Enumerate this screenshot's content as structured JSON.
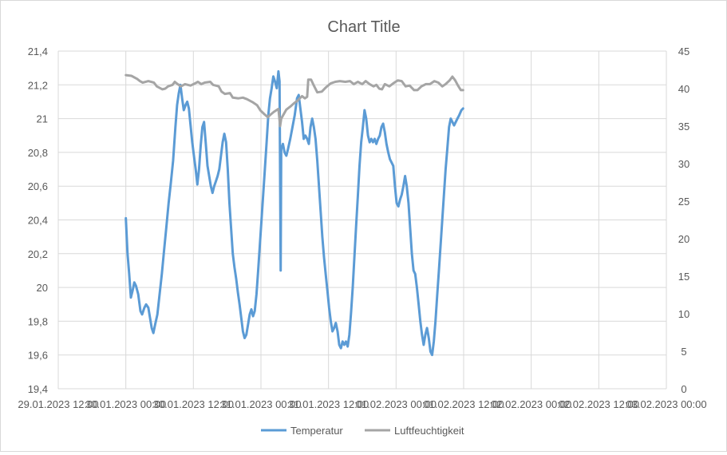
{
  "chart_data": {
    "type": "line",
    "title": "Chart Title",
    "grid": true,
    "legend_position": "bottom",
    "x_axis": {
      "tick_labels": [
        "29.01.2023 12:00",
        "30.01.2023 00:00",
        "30.01.2023 12:00",
        "31.01.2023 00:00",
        "31.01.2023 12:00",
        "01.02.2023 00:00",
        "01.02.2023 12:00",
        "02.02.2023 00:00",
        "02.02.2023 12:00",
        "03.02.2023 00:00"
      ],
      "range_hours": [
        0,
        108
      ]
    },
    "y_axis_left": {
      "ticks": [
        "19,4",
        "19,6",
        "19,8",
        "20",
        "20,2",
        "20,4",
        "20,6",
        "20,8",
        "21",
        "21,2",
        "21,4"
      ],
      "min": 19.4,
      "max": 21.4
    },
    "y_axis_right": {
      "ticks": [
        "0",
        "5",
        "10",
        "15",
        "20",
        "25",
        "30",
        "35",
        "40",
        "45"
      ],
      "min": 0,
      "max": 45
    },
    "series": [
      {
        "name": "Temperatur",
        "axis": "left",
        "color": "#5b9bd5",
        "points": [
          [
            12,
            20.41
          ],
          [
            12.3,
            20.2
          ],
          [
            12.6,
            20.08
          ],
          [
            12.9,
            19.94
          ],
          [
            13.2,
            19.98
          ],
          [
            13.5,
            20.03
          ],
          [
            13.8,
            20.01
          ],
          [
            14.2,
            19.96
          ],
          [
            14.6,
            19.86
          ],
          [
            14.9,
            19.84
          ],
          [
            15.3,
            19.88
          ],
          [
            15.6,
            19.9
          ],
          [
            16,
            19.88
          ],
          [
            16.3,
            19.82
          ],
          [
            16.6,
            19.76
          ],
          [
            16.9,
            19.73
          ],
          [
            17.2,
            19.78
          ],
          [
            17.6,
            19.84
          ],
          [
            18,
            19.96
          ],
          [
            18.4,
            20.08
          ],
          [
            18.8,
            20.22
          ],
          [
            19.2,
            20.36
          ],
          [
            19.6,
            20.5
          ],
          [
            20,
            20.62
          ],
          [
            20.4,
            20.75
          ],
          [
            20.8,
            20.95
          ],
          [
            21.1,
            21.08
          ],
          [
            21.4,
            21.15
          ],
          [
            21.7,
            21.2
          ],
          [
            22,
            21.12
          ],
          [
            22.3,
            21.05
          ],
          [
            22.6,
            21.08
          ],
          [
            22.9,
            21.1
          ],
          [
            23.2,
            21.06
          ],
          [
            23.5,
            20.96
          ],
          [
            23.8,
            20.86
          ],
          [
            24.1,
            20.78
          ],
          [
            24.4,
            20.7
          ],
          [
            24.7,
            20.61
          ],
          [
            25,
            20.7
          ],
          [
            25.3,
            20.84
          ],
          [
            25.6,
            20.95
          ],
          [
            25.9,
            20.98
          ],
          [
            26.2,
            20.85
          ],
          [
            26.5,
            20.72
          ],
          [
            26.8,
            20.66
          ],
          [
            27.1,
            20.6
          ],
          [
            27.4,
            20.56
          ],
          [
            27.7,
            20.6
          ],
          [
            28,
            20.63
          ],
          [
            28.3,
            20.66
          ],
          [
            28.6,
            20.7
          ],
          [
            28.9,
            20.78
          ],
          [
            29.2,
            20.86
          ],
          [
            29.5,
            20.91
          ],
          [
            29.8,
            20.86
          ],
          [
            30.1,
            20.7
          ],
          [
            30.4,
            20.5
          ],
          [
            30.7,
            20.35
          ],
          [
            31,
            20.2
          ],
          [
            31.3,
            20.12
          ],
          [
            31.6,
            20.05
          ],
          [
            31.9,
            19.97
          ],
          [
            32.2,
            19.9
          ],
          [
            32.5,
            19.82
          ],
          [
            32.8,
            19.74
          ],
          [
            33.1,
            19.7
          ],
          [
            33.4,
            19.72
          ],
          [
            33.7,
            19.78
          ],
          [
            34,
            19.84
          ],
          [
            34.3,
            19.87
          ],
          [
            34.6,
            19.83
          ],
          [
            34.9,
            19.86
          ],
          [
            35.2,
            19.96
          ],
          [
            35.5,
            20.1
          ],
          [
            35.8,
            20.25
          ],
          [
            36.1,
            20.4
          ],
          [
            36.4,
            20.55
          ],
          [
            36.7,
            20.7
          ],
          [
            37,
            20.86
          ],
          [
            37.3,
            21.02
          ],
          [
            37.6,
            21.12
          ],
          [
            37.9,
            21.18
          ],
          [
            38.2,
            21.25
          ],
          [
            38.5,
            21.22
          ],
          [
            38.8,
            21.18
          ],
          [
            39.1,
            21.28
          ],
          [
            39.3,
            21.22
          ],
          [
            39.5,
            20.1
          ],
          [
            39.6,
            20.82
          ],
          [
            39.9,
            20.85
          ],
          [
            40.2,
            20.8
          ],
          [
            40.5,
            20.78
          ],
          [
            40.8,
            20.82
          ],
          [
            41.2,
            20.88
          ],
          [
            41.6,
            20.95
          ],
          [
            42,
            21.02
          ],
          [
            42.4,
            21.12
          ],
          [
            42.7,
            21.14
          ],
          [
            43,
            21.06
          ],
          [
            43.3,
            20.98
          ],
          [
            43.6,
            20.88
          ],
          [
            43.9,
            20.9
          ],
          [
            44.2,
            20.88
          ],
          [
            44.5,
            20.85
          ],
          [
            44.8,
            20.95
          ],
          [
            45.1,
            21.0
          ],
          [
            45.4,
            20.95
          ],
          [
            45.7,
            20.88
          ],
          [
            46,
            20.75
          ],
          [
            46.3,
            20.6
          ],
          [
            46.6,
            20.45
          ],
          [
            46.9,
            20.3
          ],
          [
            47.2,
            20.18
          ],
          [
            47.5,
            20.08
          ],
          [
            47.8,
            19.98
          ],
          [
            48.1,
            19.88
          ],
          [
            48.4,
            19.8
          ],
          [
            48.7,
            19.74
          ],
          [
            49,
            19.76
          ],
          [
            49.3,
            19.79
          ],
          [
            49.6,
            19.74
          ],
          [
            49.9,
            19.66
          ],
          [
            50.2,
            19.64
          ],
          [
            50.5,
            19.68
          ],
          [
            50.8,
            19.66
          ],
          [
            51.1,
            19.68
          ],
          [
            51.4,
            19.65
          ],
          [
            51.7,
            19.72
          ],
          [
            52,
            19.85
          ],
          [
            52.3,
            20.0
          ],
          [
            52.6,
            20.18
          ],
          [
            52.9,
            20.36
          ],
          [
            53.2,
            20.54
          ],
          [
            53.5,
            20.72
          ],
          [
            53.8,
            20.86
          ],
          [
            54.1,
            20.95
          ],
          [
            54.4,
            21.05
          ],
          [
            54.7,
            21.0
          ],
          [
            55,
            20.9
          ],
          [
            55.3,
            20.86
          ],
          [
            55.6,
            20.88
          ],
          [
            55.9,
            20.86
          ],
          [
            56.2,
            20.88
          ],
          [
            56.5,
            20.85
          ],
          [
            56.8,
            20.88
          ],
          [
            57.1,
            20.9
          ],
          [
            57.4,
            20.95
          ],
          [
            57.7,
            20.97
          ],
          [
            58,
            20.92
          ],
          [
            58.3,
            20.85
          ],
          [
            58.6,
            20.8
          ],
          [
            58.9,
            20.76
          ],
          [
            59.2,
            20.74
          ],
          [
            59.5,
            20.72
          ],
          [
            59.8,
            20.6
          ],
          [
            60.1,
            20.5
          ],
          [
            60.4,
            20.48
          ],
          [
            60.7,
            20.52
          ],
          [
            61,
            20.55
          ],
          [
            61.3,
            20.6
          ],
          [
            61.6,
            20.66
          ],
          [
            61.9,
            20.6
          ],
          [
            62.2,
            20.5
          ],
          [
            62.5,
            20.35
          ],
          [
            62.8,
            20.2
          ],
          [
            63.1,
            20.1
          ],
          [
            63.4,
            20.08
          ],
          [
            63.7,
            20.0
          ],
          [
            64,
            19.9
          ],
          [
            64.3,
            19.8
          ],
          [
            64.6,
            19.72
          ],
          [
            64.9,
            19.66
          ],
          [
            65.2,
            19.72
          ],
          [
            65.5,
            19.76
          ],
          [
            65.8,
            19.7
          ],
          [
            66.1,
            19.62
          ],
          [
            66.4,
            19.6
          ],
          [
            66.7,
            19.68
          ],
          [
            67,
            19.8
          ],
          [
            67.3,
            19.95
          ],
          [
            67.6,
            20.1
          ],
          [
            67.9,
            20.25
          ],
          [
            68.2,
            20.4
          ],
          [
            68.5,
            20.55
          ],
          [
            68.8,
            20.7
          ],
          [
            69.1,
            20.82
          ],
          [
            69.4,
            20.95
          ],
          [
            69.7,
            21.0
          ],
          [
            70,
            20.98
          ],
          [
            70.3,
            20.96
          ],
          [
            70.6,
            20.98
          ],
          [
            70.9,
            21.0
          ],
          [
            71.2,
            21.02
          ],
          [
            71.6,
            21.05
          ],
          [
            71.9,
            21.06
          ]
        ]
      },
      {
        "name": "Luftfeuchtigkeit",
        "axis": "right",
        "color": "#a5a5a5",
        "points": [
          [
            12,
            41.8
          ],
          [
            13,
            41.7
          ],
          [
            14,
            41.3
          ],
          [
            14.5,
            41.0
          ],
          [
            15,
            40.8
          ],
          [
            16,
            41.0
          ],
          [
            17,
            40.8
          ],
          [
            17.5,
            40.3
          ],
          [
            18.5,
            39.9
          ],
          [
            19,
            40.0
          ],
          [
            19.5,
            40.3
          ],
          [
            20.3,
            40.5
          ],
          [
            20.7,
            40.9
          ],
          [
            21.2,
            40.6
          ],
          [
            21.8,
            40.3
          ],
          [
            22.5,
            40.6
          ],
          [
            23.5,
            40.4
          ],
          [
            24.3,
            40.7
          ],
          [
            24.8,
            40.9
          ],
          [
            25.4,
            40.6
          ],
          [
            26,
            40.8
          ],
          [
            27,
            40.9
          ],
          [
            27.5,
            40.5
          ],
          [
            28.5,
            40.3
          ],
          [
            29,
            39.6
          ],
          [
            29.6,
            39.3
          ],
          [
            30.5,
            39.4
          ],
          [
            31,
            38.8
          ],
          [
            32,
            38.7
          ],
          [
            32.8,
            38.8
          ],
          [
            33.5,
            38.6
          ],
          [
            34.5,
            38.2
          ],
          [
            35.3,
            37.8
          ],
          [
            35.9,
            37.1
          ],
          [
            36.6,
            36.6
          ],
          [
            37.2,
            36.2
          ],
          [
            37.8,
            36.6
          ],
          [
            38.3,
            36.9
          ],
          [
            39.1,
            37.3
          ],
          [
            39.4,
            35.0
          ],
          [
            39.6,
            36.0
          ],
          [
            40.5,
            37.2
          ],
          [
            41.2,
            37.6
          ],
          [
            41.8,
            38.0
          ],
          [
            42.5,
            38.4
          ],
          [
            43.3,
            39.0
          ],
          [
            43.8,
            38.7
          ],
          [
            44.2,
            38.9
          ],
          [
            44.4,
            41.2
          ],
          [
            44.9,
            41.2
          ],
          [
            45.4,
            40.4
          ],
          [
            46,
            39.5
          ],
          [
            46.8,
            39.6
          ],
          [
            47.6,
            40.2
          ],
          [
            48.4,
            40.7
          ],
          [
            49.2,
            40.9
          ],
          [
            50,
            41.0
          ],
          [
            51,
            40.9
          ],
          [
            51.8,
            41.0
          ],
          [
            52.5,
            40.6
          ],
          [
            53.2,
            40.9
          ],
          [
            54,
            40.6
          ],
          [
            54.6,
            41.0
          ],
          [
            55.3,
            40.6
          ],
          [
            56,
            40.3
          ],
          [
            56.5,
            40.5
          ],
          [
            57,
            40.0
          ],
          [
            57.5,
            39.9
          ],
          [
            58,
            40.6
          ],
          [
            58.8,
            40.3
          ],
          [
            59.5,
            40.7
          ],
          [
            60.3,
            41.1
          ],
          [
            61,
            41.0
          ],
          [
            61.7,
            40.3
          ],
          [
            62.4,
            40.4
          ],
          [
            63.2,
            39.8
          ],
          [
            63.8,
            39.8
          ],
          [
            64.5,
            40.3
          ],
          [
            65.3,
            40.6
          ],
          [
            66,
            40.6
          ],
          [
            66.8,
            41.0
          ],
          [
            67.5,
            40.8
          ],
          [
            68.2,
            40.3
          ],
          [
            68.8,
            40.6
          ],
          [
            69.5,
            41.1
          ],
          [
            70,
            41.6
          ],
          [
            70.5,
            41.1
          ],
          [
            71,
            40.4
          ],
          [
            71.5,
            39.8
          ],
          [
            71.9,
            39.8
          ]
        ]
      }
    ]
  }
}
